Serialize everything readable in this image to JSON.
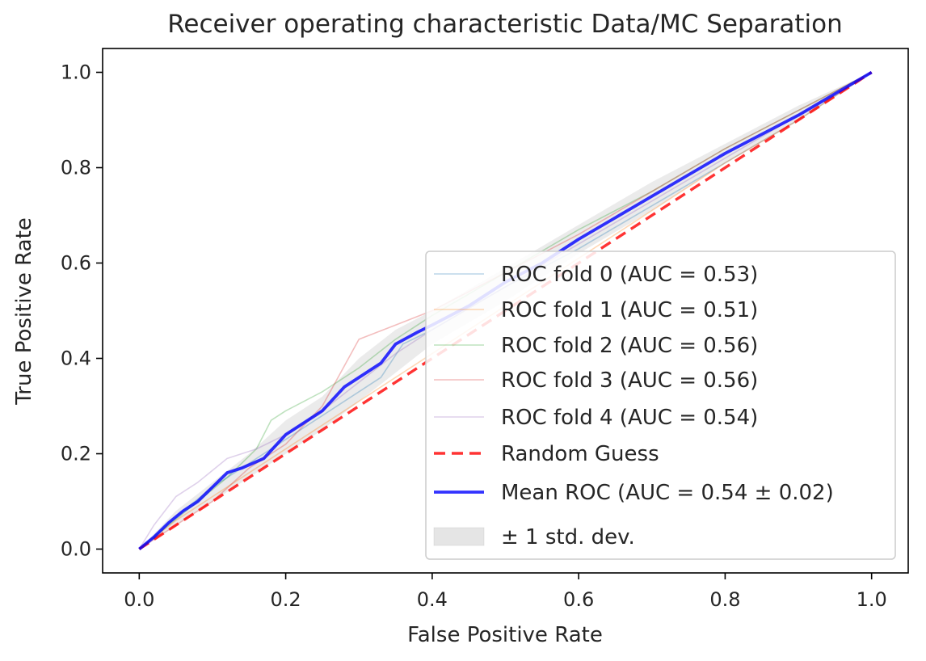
{
  "chart_data": {
    "type": "line",
    "title": "Receiver operating characteristic Data/MC Separation",
    "xlabel": "False Positive Rate",
    "ylabel": "True Positive Rate",
    "xlim": [
      -0.05,
      1.05
    ],
    "ylim": [
      -0.05,
      1.05
    ],
    "xticks": [
      0.0,
      0.2,
      0.4,
      0.6,
      0.8,
      1.0
    ],
    "yticks": [
      0.0,
      0.2,
      0.4,
      0.6,
      0.8,
      1.0
    ],
    "xtick_labels": [
      "0.0",
      "0.2",
      "0.4",
      "0.6",
      "0.8",
      "1.0"
    ],
    "ytick_labels": [
      "0.0",
      "0.2",
      "0.4",
      "0.6",
      "0.8",
      "1.0"
    ],
    "grid": false,
    "legend_position": "lower-right",
    "series": [
      {
        "name": "ROC fold 0 (AUC = 0.53)",
        "color": "#1f77b4",
        "style": "thin",
        "x": [
          0.0,
          0.03,
          0.06,
          0.1,
          0.15,
          0.2,
          0.25,
          0.3,
          0.33,
          0.36,
          0.4,
          0.5,
          0.6,
          0.7,
          0.8,
          0.9,
          1.0
        ],
        "y": [
          0.0,
          0.04,
          0.08,
          0.13,
          0.18,
          0.23,
          0.28,
          0.33,
          0.36,
          0.43,
          0.46,
          0.55,
          0.63,
          0.72,
          0.81,
          0.9,
          1.0
        ]
      },
      {
        "name": "ROC fold 1 (AUC = 0.51)",
        "color": "#ff7f0e",
        "style": "thin",
        "x": [
          0.0,
          0.05,
          0.1,
          0.15,
          0.2,
          0.25,
          0.3,
          0.35,
          0.4,
          0.5,
          0.6,
          0.7,
          0.8,
          0.9,
          1.0
        ],
        "y": [
          0.0,
          0.06,
          0.11,
          0.16,
          0.21,
          0.26,
          0.31,
          0.36,
          0.41,
          0.51,
          0.61,
          0.71,
          0.81,
          0.9,
          1.0
        ]
      },
      {
        "name": "ROC fold 2 (AUC = 0.56)",
        "color": "#2ca02c",
        "style": "thin",
        "x": [
          0.0,
          0.04,
          0.08,
          0.12,
          0.16,
          0.18,
          0.2,
          0.25,
          0.3,
          0.35,
          0.4,
          0.5,
          0.6,
          0.7,
          0.8,
          0.9,
          1.0
        ],
        "y": [
          0.0,
          0.05,
          0.1,
          0.15,
          0.21,
          0.27,
          0.29,
          0.33,
          0.38,
          0.44,
          0.49,
          0.58,
          0.67,
          0.75,
          0.84,
          0.92,
          1.0
        ]
      },
      {
        "name": "ROC fold 3 (AUC = 0.56)",
        "color": "#d62728",
        "style": "thin",
        "x": [
          0.0,
          0.05,
          0.1,
          0.15,
          0.2,
          0.25,
          0.3,
          0.35,
          0.4,
          0.5,
          0.6,
          0.7,
          0.8,
          0.9,
          1.0
        ],
        "y": [
          0.0,
          0.05,
          0.1,
          0.17,
          0.22,
          0.3,
          0.44,
          0.47,
          0.5,
          0.58,
          0.66,
          0.75,
          0.84,
          0.92,
          1.0
        ]
      },
      {
        "name": "ROC fold 4 (AUC = 0.54)",
        "color": "#9467bd",
        "style": "thin",
        "x": [
          0.0,
          0.02,
          0.05,
          0.08,
          0.12,
          0.16,
          0.2,
          0.25,
          0.3,
          0.35,
          0.4,
          0.5,
          0.6,
          0.7,
          0.8,
          0.9,
          1.0
        ],
        "y": [
          0.0,
          0.05,
          0.11,
          0.14,
          0.19,
          0.21,
          0.24,
          0.29,
          0.35,
          0.41,
          0.46,
          0.55,
          0.64,
          0.73,
          0.82,
          0.91,
          1.0
        ]
      },
      {
        "name": "Random Guess",
        "color": "#ff0000",
        "style": "dashed",
        "x": [
          0.0,
          1.0
        ],
        "y": [
          0.0,
          1.0
        ]
      },
      {
        "name": "Mean ROC (AUC = 0.54 ± 0.02)",
        "color": "#0000ff",
        "style": "thick",
        "x": [
          0.0,
          0.02,
          0.04,
          0.06,
          0.08,
          0.1,
          0.12,
          0.14,
          0.17,
          0.2,
          0.22,
          0.25,
          0.28,
          0.3,
          0.33,
          0.35,
          0.38,
          0.4,
          0.45,
          0.5,
          0.55,
          0.6,
          0.7,
          0.8,
          0.9,
          1.0
        ],
        "y": [
          0.0,
          0.025,
          0.055,
          0.08,
          0.1,
          0.13,
          0.16,
          0.17,
          0.19,
          0.24,
          0.26,
          0.29,
          0.34,
          0.36,
          0.39,
          0.43,
          0.455,
          0.47,
          0.51,
          0.56,
          0.6,
          0.65,
          0.74,
          0.83,
          0.91,
          1.0
        ]
      }
    ],
    "std_band": {
      "name": "± 1 std. dev.",
      "color": "#999999",
      "x": [
        0.0,
        0.05,
        0.1,
        0.15,
        0.2,
        0.25,
        0.3,
        0.35,
        0.4,
        0.5,
        0.6,
        0.7,
        0.8,
        0.9,
        1.0
      ],
      "upper": [
        0.0,
        0.08,
        0.14,
        0.2,
        0.27,
        0.32,
        0.4,
        0.46,
        0.5,
        0.59,
        0.68,
        0.77,
        0.85,
        0.93,
        1.0
      ],
      "lower": [
        0.0,
        0.05,
        0.1,
        0.15,
        0.2,
        0.25,
        0.31,
        0.37,
        0.43,
        0.52,
        0.62,
        0.71,
        0.81,
        0.9,
        1.0
      ]
    }
  }
}
